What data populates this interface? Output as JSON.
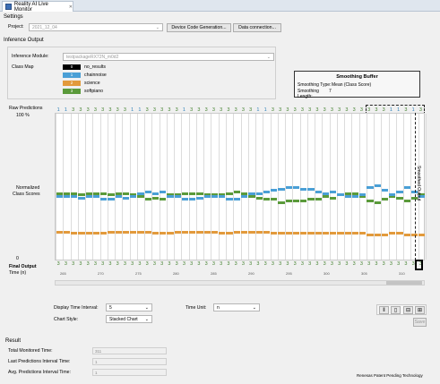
{
  "window": {
    "tab_title": "Reality AI Live Monitor"
  },
  "settings": {
    "section_label": "Settings",
    "project_label": "Project:",
    "project_value": "2021_12_04",
    "device_code_button": "Device Code Generation...",
    "data_connection_button": "Data connection..."
  },
  "inference": {
    "section_label": "Inference Output",
    "module_label": "Inference Module:",
    "module_value": "testpackageRX72N_m0d2",
    "class_map_label": "Class Map",
    "classes": [
      {
        "index": "0",
        "name": "no_results",
        "color": "#000000"
      },
      {
        "index": "1",
        "name": "chainnoise",
        "color": "#4a9fd6"
      },
      {
        "index": "2",
        "name": "science",
        "color": "#e29a3c"
      },
      {
        "index": "3",
        "name": "softpiano",
        "color": "#5a9a3a"
      }
    ]
  },
  "smoothing": {
    "title": "Smoothing Buffer",
    "type_label": "Smoothing Type:",
    "type_value": "Mean (Class Score)",
    "length_label": "Smoothing Length:",
    "length_value": "7"
  },
  "chart": {
    "raw_predictions_label": "Raw Predictions",
    "hundred_label": "100 %",
    "y_label_line1": "Normalized",
    "y_label_line2": "Class Scores",
    "zero_label": "0",
    "final_output_label": "Final Output",
    "time_label": "Time (n)",
    "smoothed_output_label": "Smoothed Output",
    "raw_predictions": [
      "1",
      "1",
      "3",
      "3",
      "3",
      "3",
      "3",
      "3",
      "3",
      "3",
      "1",
      "1",
      "3",
      "3",
      "3",
      "3",
      "3",
      "1",
      "3",
      "3",
      "3",
      "3",
      "3",
      "3",
      "3",
      "3",
      "3",
      "1",
      "1",
      "3",
      "3",
      "3",
      "3",
      "3",
      "3",
      "3",
      "3",
      "3",
      "3",
      "3",
      "3",
      "3",
      "3",
      "3",
      "3",
      "1",
      "1",
      "3",
      "1",
      "3"
    ],
    "final_outputs": [
      "3",
      "3",
      "3",
      "3",
      "3",
      "3",
      "3",
      "3",
      "3",
      "3",
      "3",
      "3",
      "3",
      "3",
      "3",
      "3",
      "3",
      "3",
      "3",
      "3",
      "3",
      "3",
      "3",
      "3",
      "3",
      "3",
      "3",
      "3",
      "3",
      "3",
      "3",
      "3",
      "3",
      "3",
      "3",
      "3",
      "3",
      "3",
      "3",
      "3",
      "3",
      "3",
      "3",
      "3",
      "3",
      "3",
      "3",
      "3",
      "3",
      "3"
    ],
    "x_ticks": [
      "265",
      "270",
      "275",
      "280",
      "285",
      "290",
      "295",
      "300",
      "305",
      "310"
    ],
    "colors": {
      "blue": "#4a9fd6",
      "green": "#5a9a3a",
      "orange": "#e29a3c"
    },
    "series_blue": [
      0.44,
      0.44,
      0.44,
      0.43,
      0.44,
      0.44,
      0.42,
      0.42,
      0.44,
      0.43,
      0.44,
      0.46,
      0.47,
      0.46,
      0.47,
      0.44,
      0.44,
      0.42,
      0.42,
      0.43,
      0.44,
      0.44,
      0.44,
      0.42,
      0.42,
      0.44,
      0.46,
      0.46,
      0.47,
      0.48,
      0.49,
      0.5,
      0.5,
      0.49,
      0.49,
      0.47,
      0.46,
      0.47,
      0.45,
      0.44,
      0.44,
      0.45,
      0.5,
      0.51,
      0.48,
      0.45,
      0.47,
      0.5,
      0.47,
      0.44
    ],
    "series_green": [
      0.46,
      0.46,
      0.46,
      0.45,
      0.46,
      0.46,
      0.46,
      0.45,
      0.46,
      0.46,
      0.45,
      0.44,
      0.42,
      0.43,
      0.42,
      0.45,
      0.45,
      0.46,
      0.46,
      0.46,
      0.45,
      0.45,
      0.45,
      0.46,
      0.47,
      0.46,
      0.44,
      0.43,
      0.42,
      0.42,
      0.4,
      0.41,
      0.41,
      0.41,
      0.42,
      0.42,
      0.44,
      0.43,
      0.45,
      0.46,
      0.46,
      0.44,
      0.41,
      0.4,
      0.42,
      0.44,
      0.43,
      0.41,
      0.43,
      0.45
    ],
    "series_orange": [
      0.2,
      0.2,
      0.19,
      0.19,
      0.19,
      0.19,
      0.19,
      0.2,
      0.2,
      0.2,
      0.2,
      0.2,
      0.2,
      0.19,
      0.19,
      0.19,
      0.2,
      0.2,
      0.2,
      0.2,
      0.2,
      0.2,
      0.19,
      0.19,
      0.2,
      0.2,
      0.2,
      0.2,
      0.2,
      0.19,
      0.19,
      0.19,
      0.19,
      0.19,
      0.19,
      0.19,
      0.19,
      0.19,
      0.19,
      0.19,
      0.19,
      0.19,
      0.18,
      0.18,
      0.18,
      0.19,
      0.19,
      0.18,
      0.18,
      0.18
    ]
  },
  "controls": {
    "display_interval_label": "Display Time Interval:",
    "display_interval_value": "5",
    "time_unit_label": "Time Unit:",
    "time_unit_value": "n",
    "chart_style_label": "Chart Style:",
    "chart_style_value": "Stacked Chart",
    "save_button": "Save"
  },
  "result": {
    "section_label": "Result",
    "total_label": "Total Monitored Time:",
    "total_value": "311",
    "last_interval_label": "Last Predictions Interval Time:",
    "last_interval_value": "1",
    "avg_interval_label": "Avg. Predictions Interval Time:",
    "avg_interval_value": "1",
    "footer": "Renesas Patent Pending Technology"
  }
}
